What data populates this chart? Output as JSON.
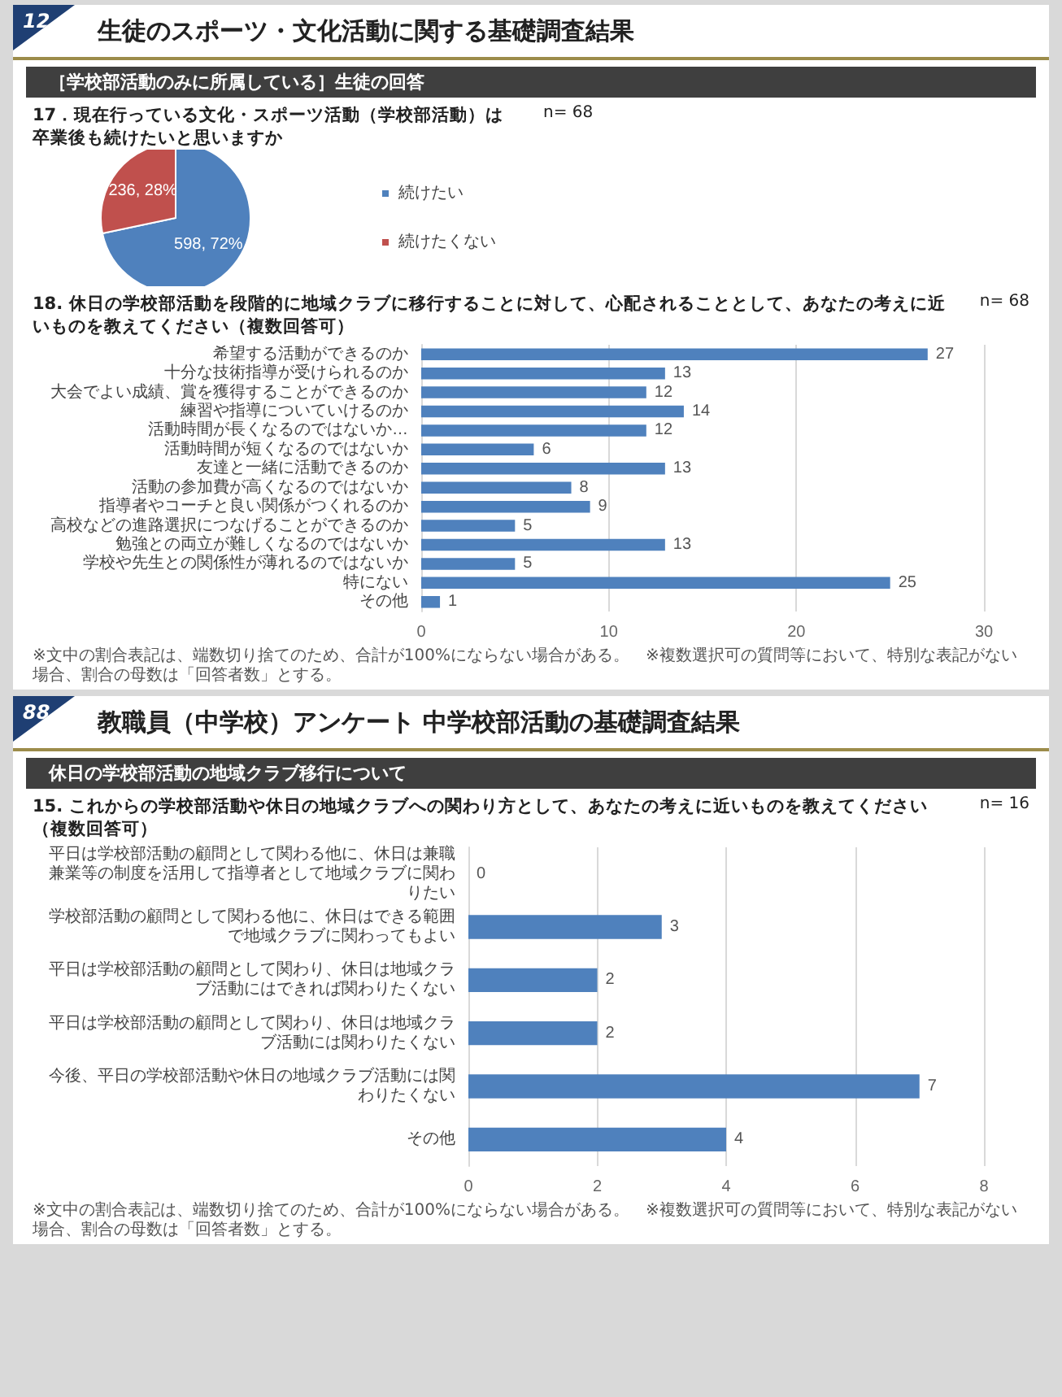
{
  "chart_data": [
    {
      "type": "pie",
      "title": "17．現在行っている文化・スポーツ活動（学校部活動）は卒業後も続けたいと思いますか",
      "categories": [
        "続けたい",
        "続けたくない"
      ],
      "values": [
        598,
        236
      ],
      "colors": [
        "#4f81bd",
        "#c0504d"
      ],
      "value_labels": [
        "598, 72%",
        "236, 28%"
      ],
      "legend": "right",
      "annotations": [
        "12",
        "生徒のスポーツ・文化活動に関する基礎調査結果",
        "［学校部活動のみに所属している］生徒の回答",
        "n= 68"
      ]
    },
    {
      "type": "bar",
      "orientation": "horizontal",
      "title": "18. 休日の学校部活動を段階的に地域クラブに移行することに対して、心配されることとして、あなたの考えに近いものを教えてください（複数回答可）",
      "categories": [
        "希望する活動ができるのか",
        "十分な技術指導が受けられるのか",
        "大会でよい成績、賞を獲得することができるのか",
        "練習や指導についていけるのか",
        "活動時間が長くなるのではないか…",
        "活動時間が短くなるのではないか",
        "友達と一緒に活動できるのか",
        "活動の参加費が高くなるのではないか",
        "指導者やコーチと良い関係がつくれるのか",
        "高校などの進路選択につなげることができるのか",
        "勉強との両立が難しくなるのではないか",
        "学校や先生との関係性が薄れるのではないか",
        "特にない",
        "その他"
      ],
      "values": [
        27,
        13,
        12,
        14,
        12,
        6,
        13,
        8,
        9,
        5,
        13,
        5,
        25,
        1
      ],
      "color": "#4f81bd",
      "xlim": [
        0,
        30
      ],
      "xticks": [
        0,
        10,
        20,
        30
      ],
      "grid": "x",
      "data_labels": true,
      "annotations": [
        "n= 68",
        "※文中の割合表記は、端数切り捨てのため、合計が100%にならない場合がある。　※複数選択可の質問等において、特別な表記がない場合、割合の母数は「回答者数」とする。"
      ]
    },
    {
      "type": "bar",
      "orientation": "horizontal",
      "title": "15. これからの学校部活動や休日の地域クラブへの関わり方として、あなたの考えに近いものを教えてください（複数回答可）",
      "categories": [
        "平日は学校部活動の顧問として関わる他に、休日は兼職兼業等の制度を活用して指導者として地域クラブに関わりたい",
        "学校部活動の顧問として関わる他に、休日はできる範囲で地域クラブに関わってもよい",
        "平日は学校部活動の顧問として関わり、休日は地域クラブ活動にはできれば関わりたくない",
        "平日は学校部活動の顧問として関わり、休日は地域クラブ活動には関わりたくない",
        "今後、平日の学校部活動や休日の地域クラブ活動には関わりたくない",
        "その他"
      ],
      "values": [
        0,
        3,
        2,
        2,
        7,
        4
      ],
      "color": "#4f81bd",
      "xlim": [
        0,
        8
      ],
      "xticks": [
        0,
        2,
        4,
        6,
        8
      ],
      "grid": "x",
      "data_labels": true,
      "annotations": [
        "88",
        "教職員（中学校）アンケート 中学校部活動の基礎調査結果",
        "休日の学校部活動の地域クラブ移行について",
        "n= 16",
        "※文中の割合表記は、端数切り捨てのため、合計が100%にならない場合がある。　※複数選択可の質問等において、特別な表記がない場合、割合の母数は「回答者数」とする。"
      ]
    }
  ]
}
